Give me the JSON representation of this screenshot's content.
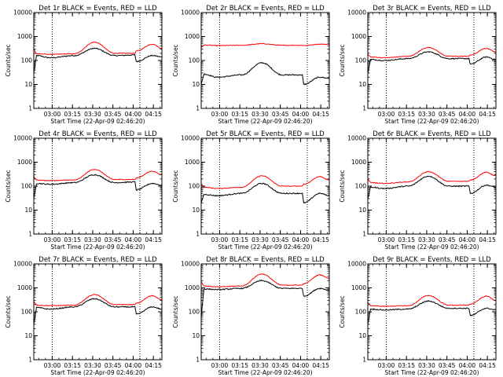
{
  "chart_data": [
    {
      "type": "line",
      "title": "Det 1r BLACK = Events, RED = LLD",
      "xlabel": "Start Time (22-Apr-09 02:46:20)",
      "ylabel": "Counts/sec",
      "yscale": "log",
      "ylim": [
        1,
        10000
      ],
      "x_ticks": [
        "03:00",
        "03:15",
        "03:30",
        "03:45",
        "04:00",
        "04:15"
      ],
      "y_ticks": [
        "1",
        "10",
        "100",
        "1000",
        "10000"
      ],
      "vlines": [
        "03:00",
        "04:05"
      ],
      "series": [
        {
          "name": "BLACK = Events",
          "color": "#000000",
          "values": [
            30,
            160,
            130,
            160,
            320,
            160,
            170,
            90,
            160,
            140
          ]
        },
        {
          "name": "RED = LLD",
          "color": "#ff0000",
          "values": [
            300,
            190,
            180,
            190,
            580,
            200,
            200,
            250,
            480,
            320
          ]
        }
      ]
    },
    {
      "type": "line",
      "title": "Det 2r BLACK = Events, RED = LLD",
      "xlabel": "Start Time (22-Apr-09 02:46:20)",
      "ylabel": "Counts/sec",
      "yscale": "log",
      "ylim": [
        1,
        10000
      ],
      "x_ticks": [
        "03:00",
        "03:15",
        "03:30",
        "03:45",
        "04:00",
        "04:15"
      ],
      "y_ticks": [
        "1",
        "10",
        "100",
        "1000",
        "10000"
      ],
      "vlines": [
        "03:00",
        "04:05"
      ],
      "series": [
        {
          "name": "BLACK = Events",
          "color": "#000000",
          "values": [
            10,
            27,
            20,
            25,
            80,
            25,
            25,
            10,
            20,
            18
          ]
        },
        {
          "name": "RED = LLD",
          "color": "#ff0000",
          "values": [
            350,
            440,
            420,
            430,
            500,
            430,
            430,
            420,
            480,
            470
          ]
        }
      ]
    },
    {
      "type": "line",
      "title": "Det 3r BLACK = Events, RED = LLD",
      "xlabel": "Start Time (22-Apr-09 02:46:20)",
      "ylabel": "Counts/sec",
      "yscale": "log",
      "ylim": [
        1,
        10000
      ],
      "x_ticks": [
        "03:00",
        "03:15",
        "03:30",
        "03:45",
        "04:00",
        "04:15"
      ],
      "y_ticks": [
        "1",
        "10",
        "100",
        "1000",
        "10000"
      ],
      "vlines": [
        "03:00",
        "04:05"
      ],
      "series": [
        {
          "name": "BLACK = Events",
          "color": "#000000",
          "values": [
            30,
            110,
            100,
            120,
            230,
            120,
            120,
            70,
            140,
            110
          ]
        },
        {
          "name": "RED = LLD",
          "color": "#ff0000",
          "values": [
            180,
            140,
            130,
            150,
            350,
            150,
            150,
            170,
            320,
            230
          ]
        }
      ]
    },
    {
      "type": "line",
      "title": "Det 4r BLACK = Events, RED = LLD",
      "xlabel": "Start Time (22-Apr-09 02:46:20)",
      "ylabel": "Counts/sec",
      "yscale": "log",
      "ylim": [
        1,
        10000
      ],
      "x_ticks": [
        "03:00",
        "03:15",
        "03:30",
        "03:45",
        "04:00",
        "04:15"
      ],
      "y_ticks": [
        "1",
        "10",
        "100",
        "1000",
        "10000"
      ],
      "vlines": [
        "03:00",
        "04:05"
      ],
      "series": [
        {
          "name": "BLACK = Events",
          "color": "#000000",
          "values": [
            30,
            130,
            120,
            140,
            300,
            140,
            150,
            70,
            130,
            110
          ]
        },
        {
          "name": "RED = LLD",
          "color": "#ff0000",
          "values": [
            250,
            180,
            170,
            180,
            500,
            190,
            190,
            220,
            420,
            300
          ]
        }
      ]
    },
    {
      "type": "line",
      "title": "Det 5r BLACK = Events, RED = LLD",
      "xlabel": "Start Time (22-Apr-09 02:46:20)",
      "ylabel": "Counts/sec",
      "yscale": "log",
      "ylim": [
        1,
        10000
      ],
      "x_ticks": [
        "03:00",
        "03:15",
        "03:30",
        "03:45",
        "04:00",
        "04:15"
      ],
      "y_ticks": [
        "1",
        "10",
        "100",
        "1000",
        "10000"
      ],
      "vlines": [
        "03:00",
        "04:05"
      ],
      "series": [
        {
          "name": "BLACK = Events",
          "color": "#000000",
          "values": [
            20,
            45,
            40,
            50,
            130,
            50,
            50,
            20,
            50,
            40
          ]
        },
        {
          "name": "RED = LLD",
          "color": "#ff0000",
          "values": [
            130,
            90,
            80,
            90,
            270,
            100,
            100,
            120,
            250,
            180
          ]
        }
      ]
    },
    {
      "type": "line",
      "title": "Det 6r BLACK = Events, RED = LLD",
      "xlabel": "Start Time (22-Apr-09 02:46:20)",
      "ylabel": "Counts/sec",
      "yscale": "log",
      "ylim": [
        1,
        10000
      ],
      "x_ticks": [
        "03:00",
        "03:15",
        "03:30",
        "03:45",
        "04:00",
        "04:15"
      ],
      "y_ticks": [
        "1",
        "10",
        "100",
        "1000",
        "10000"
      ],
      "vlines": [
        "03:00",
        "04:05"
      ],
      "series": [
        {
          "name": "BLACK = Events",
          "color": "#000000",
          "values": [
            30,
            90,
            80,
            100,
            260,
            100,
            100,
            50,
            110,
            90
          ]
        },
        {
          "name": "RED = LLD",
          "color": "#ff0000",
          "values": [
            200,
            140,
            130,
            150,
            400,
            160,
            160,
            180,
            380,
            270
          ]
        }
      ]
    },
    {
      "type": "line",
      "title": "Det 7r BLACK = Events, RED = LLD",
      "xlabel": "Start Time (22-Apr-09 02:46:20)",
      "ylabel": "Counts/sec",
      "yscale": "log",
      "ylim": [
        1,
        10000
      ],
      "x_ticks": [
        "03:00",
        "03:15",
        "03:30",
        "03:45",
        "04:00",
        "04:15"
      ],
      "y_ticks": [
        "1",
        "10",
        "100",
        "1000",
        "10000"
      ],
      "vlines": [
        "03:00",
        "04:05"
      ],
      "series": [
        {
          "name": "BLACK = Events",
          "color": "#000000",
          "values": [
            30,
            150,
            130,
            160,
            350,
            160,
            160,
            80,
            160,
            130
          ]
        },
        {
          "name": "RED = LLD",
          "color": "#ff0000",
          "values": [
            270,
            190,
            180,
            190,
            520,
            200,
            200,
            230,
            470,
            320
          ]
        }
      ]
    },
    {
      "type": "line",
      "title": "Det 8r BLACK = Events, RED = LLD",
      "xlabel": "Start Time (22-Apr-09 02:46:20)",
      "ylabel": "Counts/sec",
      "yscale": "log",
      "ylim": [
        1,
        10000
      ],
      "x_ticks": [
        "03:00",
        "03:15",
        "03:30",
        "03:45",
        "04:00",
        "04:15"
      ],
      "y_ticks": [
        "1",
        "10",
        "100",
        "1000",
        "10000"
      ],
      "vlines": [
        "03:00",
        "04:05"
      ],
      "series": [
        {
          "name": "BLACK = Events",
          "color": "#000000",
          "values": [
            60,
            900,
            850,
            950,
            2000,
            950,
            950,
            450,
            950,
            800
          ]
        },
        {
          "name": "RED = LLD",
          "color": "#ff0000",
          "values": [
            1800,
            1200,
            1100,
            1200,
            3800,
            1300,
            1300,
            1500,
            3500,
            2500
          ]
        }
      ]
    },
    {
      "type": "line",
      "title": "Det 9r BLACK = Events, RED = LLD",
      "xlabel": "Start Time (22-Apr-09 02:46:20)",
      "ylabel": "Counts/sec",
      "yscale": "log",
      "ylim": [
        1,
        10000
      ],
      "x_ticks": [
        "03:00",
        "03:15",
        "03:30",
        "03:45",
        "04:00",
        "04:15"
      ],
      "y_ticks": [
        "1",
        "10",
        "100",
        "1000",
        "10000"
      ],
      "vlines": [
        "03:00",
        "04:05"
      ],
      "series": [
        {
          "name": "BLACK = Events",
          "color": "#000000",
          "values": [
            30,
            130,
            120,
            130,
            280,
            140,
            140,
            70,
            140,
            120
          ]
        },
        {
          "name": "RED = LLD",
          "color": "#ff0000",
          "values": [
            250,
            180,
            170,
            180,
            480,
            190,
            190,
            210,
            450,
            300
          ]
        }
      ]
    }
  ]
}
